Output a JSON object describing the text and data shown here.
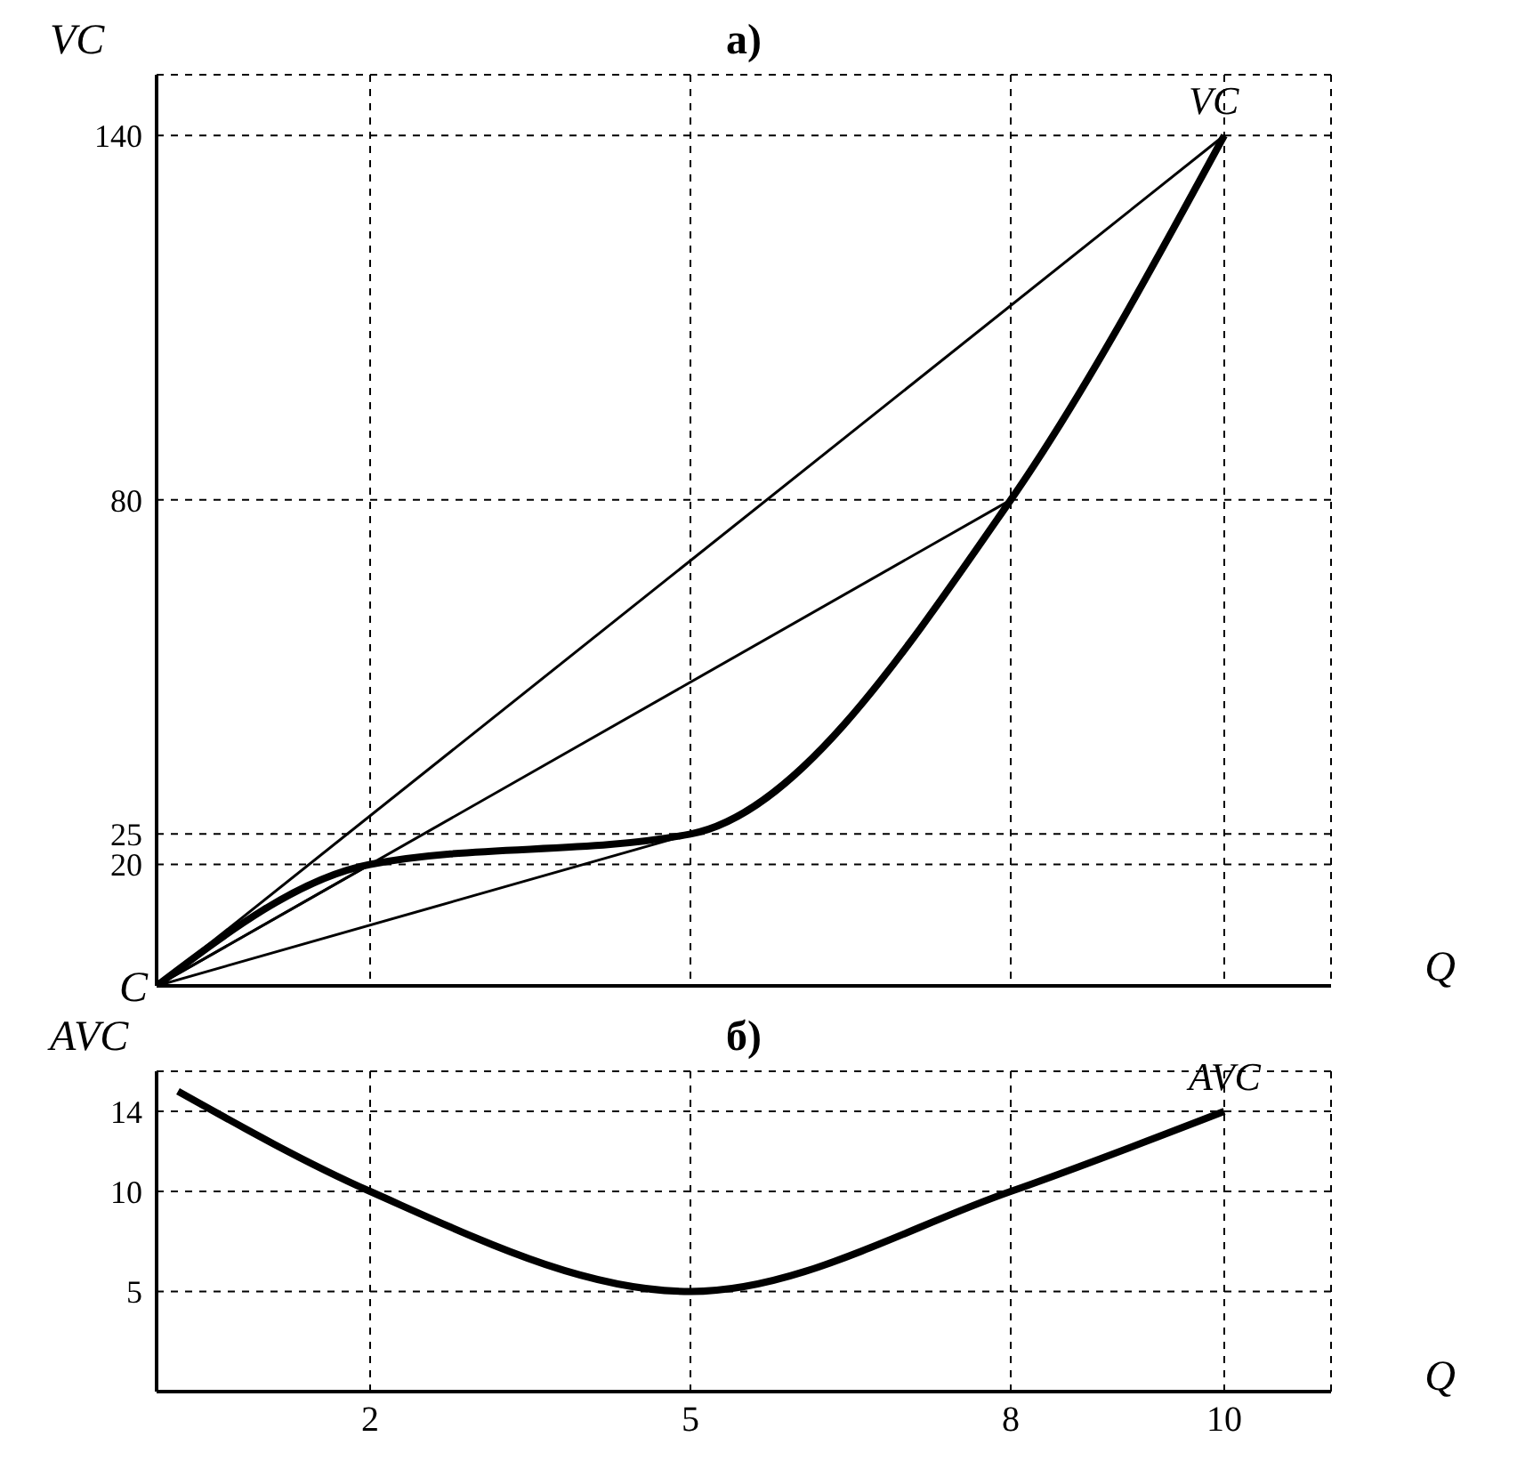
{
  "chart_data": [
    {
      "type": "line",
      "title": "а)",
      "xlabel": "Q",
      "ylabel": "VC",
      "xlim": [
        0,
        11
      ],
      "ylim": [
        0,
        150
      ],
      "xticks": [
        2,
        5,
        8,
        10
      ],
      "yticks": [
        20,
        25,
        80,
        140
      ],
      "tick_labels": "y",
      "grid": true,
      "line_style": "solid",
      "marker": "none",
      "annotations": [
        {
          "text": "C",
          "x": 0,
          "y": 0
        }
      ],
      "series": [
        {
          "name": "VC",
          "color": "#000000",
          "x": [
            0,
            2,
            5,
            8,
            10
          ],
          "values": [
            0,
            20,
            25,
            80,
            140
          ]
        },
        {
          "type": "line",
          "color": "#000000",
          "x": [
            0,
            2
          ],
          "values": [
            0,
            20
          ]
        },
        {
          "type": "line",
          "color": "#000000",
          "x": [
            0,
            5
          ],
          "values": [
            0,
            25
          ]
        },
        {
          "type": "line",
          "color": "#000000",
          "x": [
            0,
            8
          ],
          "values": [
            0,
            80
          ]
        },
        {
          "type": "line",
          "color": "#000000",
          "x": [
            0,
            10
          ],
          "values": [
            0,
            140
          ]
        }
      ]
    },
    {
      "type": "line",
      "title": "б)",
      "xlabel": "Q",
      "ylabel": "AVC",
      "xlim": [
        0,
        11
      ],
      "ylim": [
        0,
        16
      ],
      "xticks": [
        2,
        5,
        8,
        10
      ],
      "yticks": [
        5,
        10,
        14
      ],
      "grid": true,
      "line_style": "solid",
      "marker": "none",
      "series": [
        {
          "name": "AVC",
          "color": "#000000",
          "x": [
            0.2,
            2,
            5,
            8,
            10
          ],
          "values": [
            15,
            10,
            5,
            10,
            14
          ]
        }
      ]
    }
  ]
}
